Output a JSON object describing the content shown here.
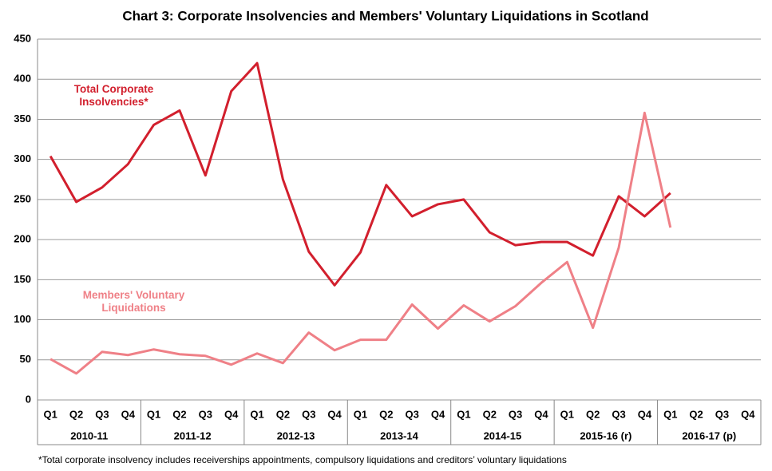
{
  "chart_data": {
    "type": "line",
    "title": "Chart 3: Corporate Insolvencies and Members' Voluntary Liquidations in Scotland",
    "categories": [
      "Q1",
      "Q2",
      "Q3",
      "Q4",
      "Q1",
      "Q2",
      "Q3",
      "Q4",
      "Q1",
      "Q2",
      "Q3",
      "Q4",
      "Q1",
      "Q2",
      "Q3",
      "Q4",
      "Q1",
      "Q2",
      "Q3",
      "Q4",
      "Q1",
      "Q2",
      "Q3",
      "Q4",
      "Q1",
      "Q2",
      "Q3",
      "Q4"
    ],
    "category_groups": [
      "2010-11",
      "2011-12",
      "2012-13",
      "2013-14",
      "2014-15",
      "2015-16 (r)",
      "2016-17 (p)"
    ],
    "series": [
      {
        "name": "Total Corporate Insolvencies*",
        "color": "#d21f2d",
        "values": [
          304,
          247,
          265,
          294,
          343,
          361,
          280,
          385,
          420,
          275,
          185,
          143,
          184,
          268,
          229,
          244,
          250,
          209,
          193,
          197,
          197,
          180,
          254,
          229,
          258,
          null,
          null,
          null
        ]
      },
      {
        "name": "Members' Voluntary Liquidations",
        "color": "#ef8087",
        "values": [
          51,
          33,
          60,
          56,
          63,
          57,
          55,
          44,
          58,
          46,
          84,
          62,
          75,
          75,
          119,
          89,
          118,
          98,
          117,
          146,
          172,
          90,
          190,
          358,
          215,
          null,
          null,
          null
        ]
      }
    ],
    "ylim": [
      0,
      450
    ],
    "yticks": [
      0,
      50,
      100,
      150,
      200,
      250,
      300,
      350,
      400,
      450
    ],
    "grid": true,
    "footnote": "*Total corporate insolvency includes receiverships appointments, compulsory liquidations and creditors’ voluntary liquidations"
  }
}
